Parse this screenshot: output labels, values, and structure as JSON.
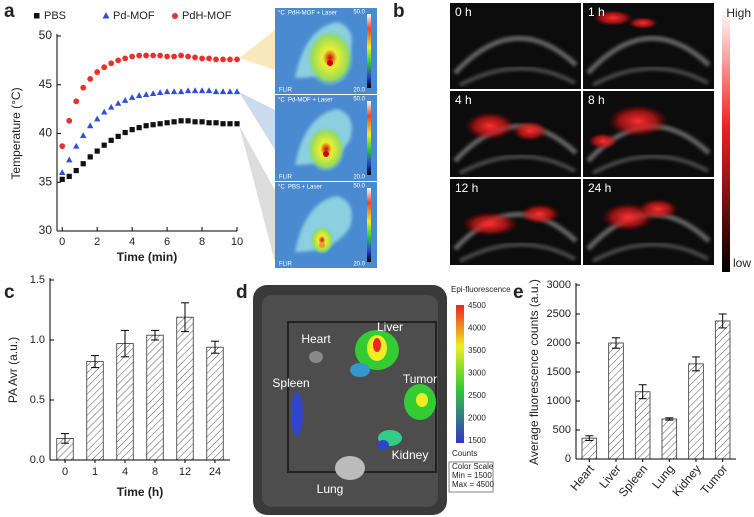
{
  "panel_letters": [
    "a",
    "b",
    "c",
    "d",
    "e"
  ],
  "thermal": {
    "captions": [
      "PdH-MOF + Laser",
      "Pd-MOF + Laser",
      "PBS + Laser"
    ],
    "unit": "°C",
    "max": "50.0",
    "min": "20.0",
    "brand": "FLIR"
  },
  "ultrasound": {
    "times": [
      "0 h",
      "1 h",
      "4 h",
      "8 h",
      "12 h",
      "24 h"
    ],
    "scale_high": "High",
    "scale_low": "low"
  },
  "fluorescence": {
    "organs": [
      "Heart",
      "Liver",
      "Spleen",
      "Tumor",
      "Lung",
      "Kidney"
    ],
    "scale_title": "Epi-fluorescence",
    "scale_ticks": [
      "4500",
      "4000",
      "3500",
      "3000",
      "2500",
      "2000",
      "1500"
    ],
    "units": "Counts",
    "color_scale": [
      "Color Scale",
      "Min = 1500",
      "Max = 4500"
    ]
  },
  "chart_data": [
    {
      "type": "scatter",
      "xlabel": "Time (min)",
      "ylabel": "Temperature (°C)",
      "xlim": [
        -0.3,
        10
      ],
      "ylim": [
        30,
        50
      ],
      "xticks": [
        0,
        2,
        4,
        6,
        8,
        10
      ],
      "yticks": [
        30,
        35,
        40,
        45,
        50
      ],
      "x": [
        0,
        0.4,
        0.8,
        1.2,
        1.6,
        2.0,
        2.4,
        2.8,
        3.2,
        3.6,
        4.0,
        4.4,
        4.8,
        5.2,
        5.6,
        6.0,
        6.4,
        6.8,
        7.2,
        7.6,
        8.0,
        8.4,
        8.8,
        9.2,
        9.6,
        10.0
      ],
      "series": [
        {
          "name": "PBS",
          "color": "#111111",
          "marker": "square",
          "values": [
            35.3,
            35.6,
            36.2,
            36.9,
            37.6,
            38.2,
            38.8,
            39.3,
            39.7,
            40.1,
            40.4,
            40.6,
            40.8,
            40.9,
            41.0,
            41.1,
            41.2,
            41.3,
            41.3,
            41.2,
            41.2,
            41.1,
            41.1,
            41.0,
            41.0,
            41.0
          ]
        },
        {
          "name": "Pd-MOF",
          "color": "#2f4fd8",
          "marker": "triangle",
          "values": [
            36.0,
            37.3,
            38.7,
            39.8,
            40.8,
            41.5,
            42.2,
            42.7,
            43.1,
            43.4,
            43.7,
            43.9,
            44.0,
            44.1,
            44.2,
            44.3,
            44.3,
            44.3,
            44.4,
            44.4,
            44.4,
            44.4,
            44.3,
            44.3,
            44.3,
            44.3
          ]
        },
        {
          "name": "PdH-MOF",
          "color": "#e8312a",
          "marker": "circle",
          "values": [
            38.7,
            41.3,
            43.3,
            44.7,
            45.6,
            46.3,
            46.8,
            47.2,
            47.5,
            47.7,
            47.9,
            48.0,
            48.0,
            48.0,
            48.0,
            47.9,
            47.9,
            48.0,
            47.9,
            47.8,
            47.7,
            47.7,
            47.6,
            47.6,
            47.6,
            47.6
          ]
        }
      ]
    },
    {
      "type": "bar",
      "xlabel": "Time (h)",
      "ylabel": "PA  Avr (a.u.)",
      "categories": [
        "0",
        "1",
        "4",
        "8",
        "12",
        "24"
      ],
      "values": [
        0.18,
        0.82,
        0.97,
        1.04,
        1.19,
        0.94
      ],
      "errors": [
        0.04,
        0.05,
        0.11,
        0.04,
        0.12,
        0.05
      ],
      "ylim": [
        0,
        1.5
      ],
      "yticks": [
        {
          "value": 0,
          "label": "0.0"
        },
        0.5,
        {
          "value": 1,
          "label": "1.0"
        },
        1.5
      ],
      "color": "#ffffff",
      "hatch": true
    },
    {
      "type": "bar",
      "ylabel": "Average fluorescence counts (a.u.)",
      "categories": [
        "Heart",
        "Liver",
        "Spleen",
        "Lung",
        "Kidney",
        "Tumor"
      ],
      "values": [
        360,
        2000,
        1160,
        690,
        1640,
        2380
      ],
      "errors": [
        40,
        90,
        120,
        20,
        120,
        120
      ],
      "ylim": [
        0,
        3000
      ],
      "yticks": [
        0,
        500,
        1000,
        1500,
        2000,
        2500,
        3000
      ],
      "color": "#ffffff",
      "hatch": true,
      "rotate_labels": true
    }
  ]
}
